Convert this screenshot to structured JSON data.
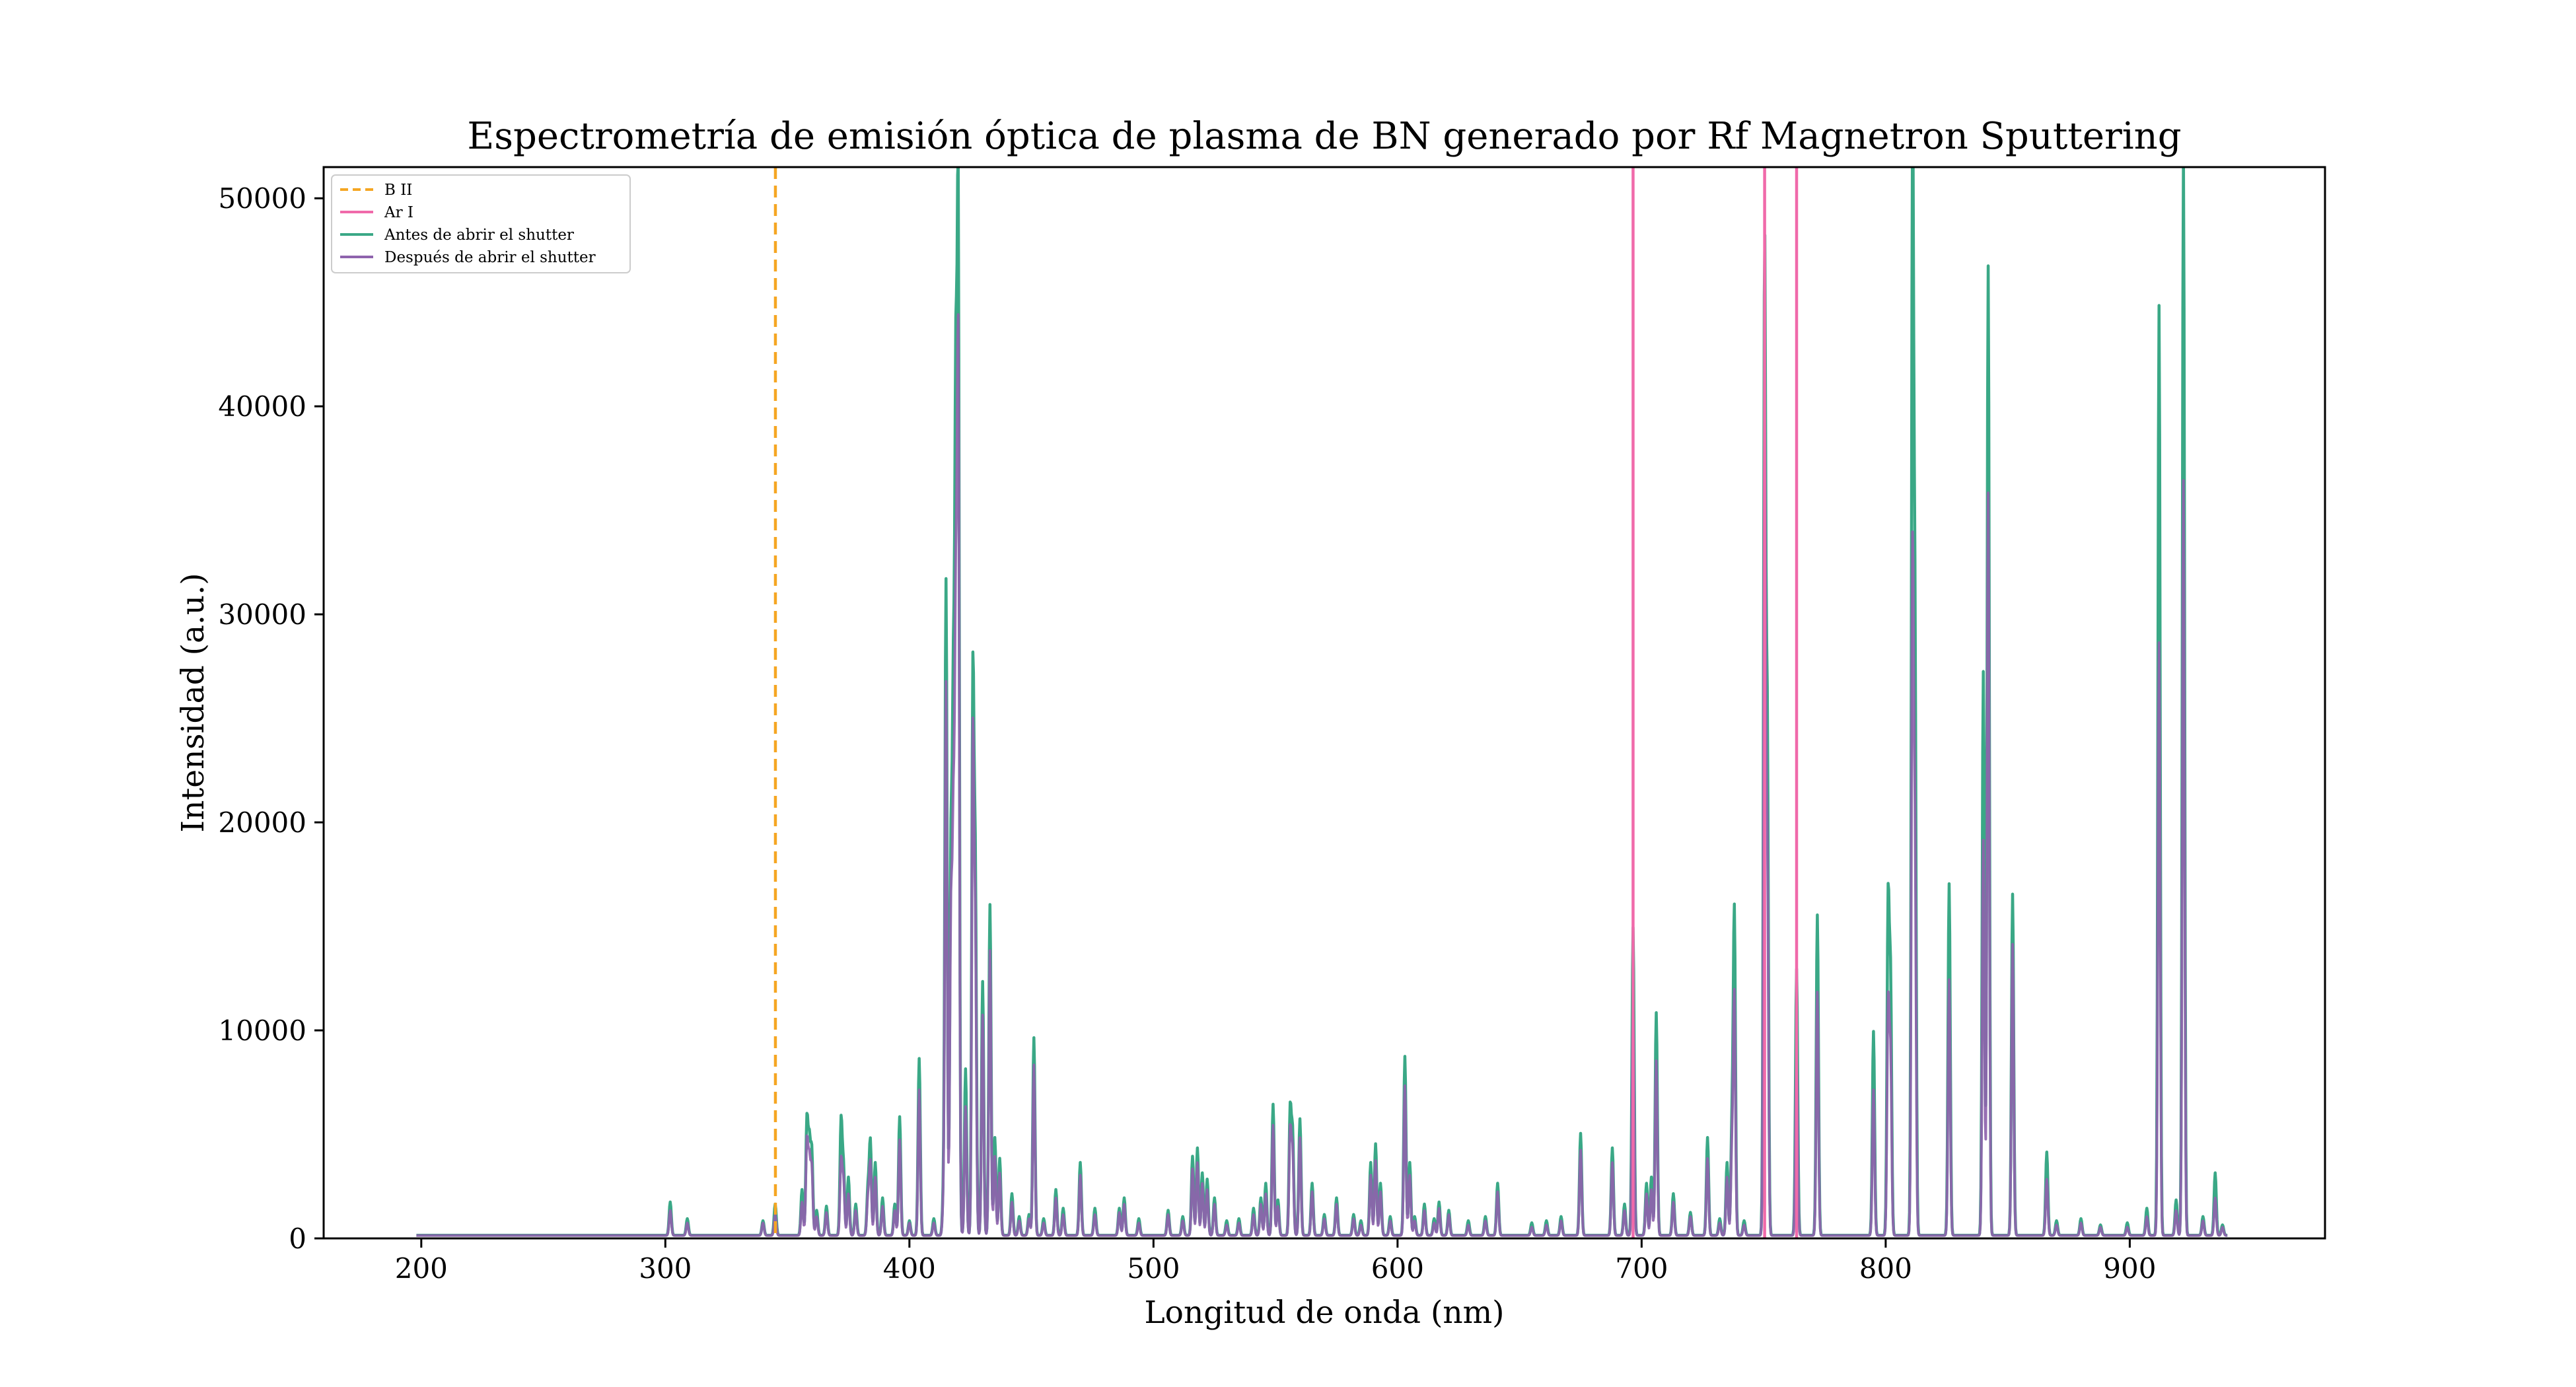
{
  "chart_data": {
    "type": "line",
    "title": "Espectrometría de emisión óptica de plasma de BN generado por Rf Magnetron Sputtering",
    "xlabel": "Longitud de onda (nm)",
    "ylabel": "Intensidad (a.u.)",
    "xlim": [
      160,
      980
    ],
    "ylim": [
      0,
      51500
    ],
    "xticks": [
      200,
      300,
      400,
      500,
      600,
      700,
      800,
      900
    ],
    "yticks": [
      0,
      10000,
      20000,
      30000,
      40000,
      50000
    ],
    "grid": false,
    "legend_position": "top-left",
    "legend": [
      "B II",
      "Ar I",
      "Antes de abrir el shutter",
      "Después de abrir el shutter"
    ],
    "reference_lines": [
      {
        "name": "B II",
        "color": "#f5a623",
        "style": "dashed",
        "x": [
          345.1
        ]
      },
      {
        "name": "Ar I",
        "color": "#f06aaa",
        "style": "solid",
        "x": [
          696.5,
          750.4,
          763.5
        ]
      }
    ],
    "series": [
      {
        "name": "Antes de abrir el shutter",
        "color": "#3aa886",
        "x_range": [
          198,
          940
        ],
        "baseline": 150,
        "peaks": [
          [
            302,
            1600
          ],
          [
            309,
            800
          ],
          [
            340,
            700
          ],
          [
            345,
            1500
          ],
          [
            356,
            2200
          ],
          [
            358,
            5500
          ],
          [
            359,
            4300
          ],
          [
            360,
            4000
          ],
          [
            362,
            1200
          ],
          [
            366,
            1400
          ],
          [
            372,
            5500
          ],
          [
            373,
            3200
          ],
          [
            375,
            2800
          ],
          [
            378,
            1500
          ],
          [
            383,
            2200
          ],
          [
            384,
            4500
          ],
          [
            386,
            3500
          ],
          [
            389,
            1800
          ],
          [
            394,
            1500
          ],
          [
            396,
            5700
          ],
          [
            400,
            700
          ],
          [
            404,
            8500
          ],
          [
            410,
            800
          ],
          [
            414,
            2000
          ],
          [
            415,
            31400
          ],
          [
            417,
            18000
          ],
          [
            418,
            24000
          ],
          [
            419,
            38000
          ],
          [
            420,
            48400
          ],
          [
            423,
            8000
          ],
          [
            426,
            26600
          ],
          [
            427,
            17000
          ],
          [
            430,
            12200
          ],
          [
            433,
            15900
          ],
          [
            435,
            4700
          ],
          [
            437,
            3700
          ],
          [
            442,
            2000
          ],
          [
            445,
            900
          ],
          [
            449,
            1000
          ],
          [
            451,
            9500
          ],
          [
            455,
            800
          ],
          [
            460,
            2200
          ],
          [
            463,
            1300
          ],
          [
            470,
            3500
          ],
          [
            476,
            1300
          ],
          [
            486,
            1300
          ],
          [
            488,
            1800
          ],
          [
            494,
            800
          ],
          [
            506,
            1200
          ],
          [
            512,
            900
          ],
          [
            516,
            3800
          ],
          [
            518,
            4200
          ],
          [
            520,
            3000
          ],
          [
            522,
            2700
          ],
          [
            525,
            1800
          ],
          [
            530,
            700
          ],
          [
            535,
            800
          ],
          [
            541,
            1300
          ],
          [
            544,
            1800
          ],
          [
            546,
            2500
          ],
          [
            549,
            6300
          ],
          [
            551,
            1700
          ],
          [
            556,
            6000
          ],
          [
            557,
            4800
          ],
          [
            560,
            5600
          ],
          [
            565,
            2500
          ],
          [
            570,
            1000
          ],
          [
            575,
            1800
          ],
          [
            582,
            1000
          ],
          [
            585,
            700
          ],
          [
            589,
            3500
          ],
          [
            591,
            4400
          ],
          [
            593,
            2500
          ],
          [
            597,
            900
          ],
          [
            603,
            8600
          ],
          [
            605,
            3500
          ],
          [
            607,
            900
          ],
          [
            611,
            1500
          ],
          [
            615,
            800
          ],
          [
            617,
            1600
          ],
          [
            621,
            1200
          ],
          [
            629,
            700
          ],
          [
            636,
            900
          ],
          [
            641,
            2500
          ],
          [
            655,
            600
          ],
          [
            661,
            700
          ],
          [
            667,
            900
          ],
          [
            675,
            4900
          ],
          [
            688,
            4200
          ],
          [
            693,
            1500
          ],
          [
            696.5,
            14800
          ],
          [
            702,
            2500
          ],
          [
            704,
            2800
          ],
          [
            706,
            10700
          ],
          [
            713,
            2000
          ],
          [
            720,
            1100
          ],
          [
            727,
            4700
          ],
          [
            732,
            800
          ],
          [
            735,
            3500
          ],
          [
            737,
            5000
          ],
          [
            738,
            15500
          ],
          [
            742,
            700
          ],
          [
            750.4,
            47200
          ],
          [
            751.5,
            24000
          ],
          [
            763.5,
            12800
          ],
          [
            772,
            15400
          ],
          [
            795,
            9800
          ],
          [
            801,
            15900
          ],
          [
            802,
            12000
          ],
          [
            811,
            52000
          ],
          [
            812,
            28000
          ],
          [
            826,
            16900
          ],
          [
            840,
            27100
          ],
          [
            842,
            46600
          ],
          [
            852,
            16400
          ],
          [
            866,
            4000
          ],
          [
            870,
            700
          ],
          [
            880,
            800
          ],
          [
            888,
            500
          ],
          [
            899,
            600
          ],
          [
            907,
            1300
          ],
          [
            912,
            44700
          ],
          [
            919,
            1700
          ],
          [
            922,
            52000
          ],
          [
            930,
            900
          ],
          [
            935,
            3000
          ],
          [
            938,
            500
          ]
        ]
      },
      {
        "name": "Después de abrir el shutter",
        "color": "#8e63ad",
        "x_range": [
          198,
          940
        ],
        "baseline": 140,
        "peaks": [
          [
            302,
            1200
          ],
          [
            309,
            600
          ],
          [
            340,
            600
          ],
          [
            345,
            1000
          ],
          [
            356,
            1600
          ],
          [
            358,
            4500
          ],
          [
            359,
            3500
          ],
          [
            360,
            3200
          ],
          [
            362,
            900
          ],
          [
            366,
            1100
          ],
          [
            372,
            3600
          ],
          [
            373,
            2600
          ],
          [
            375,
            2000
          ],
          [
            378,
            1200
          ],
          [
            383,
            1800
          ],
          [
            384,
            3500
          ],
          [
            386,
            2800
          ],
          [
            389,
            1400
          ],
          [
            394,
            1200
          ],
          [
            396,
            4600
          ],
          [
            400,
            600
          ],
          [
            404,
            7000
          ],
          [
            410,
            600
          ],
          [
            414,
            1600
          ],
          [
            415,
            26500
          ],
          [
            417,
            15000
          ],
          [
            418,
            18300
          ],
          [
            419,
            28000
          ],
          [
            420,
            41900
          ],
          [
            423,
            6200
          ],
          [
            426,
            23700
          ],
          [
            427,
            14000
          ],
          [
            430,
            10600
          ],
          [
            433,
            13700
          ],
          [
            435,
            3800
          ],
          [
            437,
            3000
          ],
          [
            442,
            1600
          ],
          [
            445,
            700
          ],
          [
            449,
            800
          ],
          [
            451,
            8200
          ],
          [
            455,
            600
          ],
          [
            460,
            1800
          ],
          [
            463,
            1000
          ],
          [
            470,
            2900
          ],
          [
            476,
            1000
          ],
          [
            486,
            1100
          ],
          [
            488,
            1500
          ],
          [
            494,
            600
          ],
          [
            506,
            1000
          ],
          [
            512,
            700
          ],
          [
            516,
            3200
          ],
          [
            518,
            3500
          ],
          [
            520,
            2500
          ],
          [
            522,
            2200
          ],
          [
            525,
            1500
          ],
          [
            530,
            500
          ],
          [
            535,
            600
          ],
          [
            541,
            1000
          ],
          [
            544,
            1500
          ],
          [
            546,
            2000
          ],
          [
            549,
            5300
          ],
          [
            551,
            1400
          ],
          [
            556,
            5000
          ],
          [
            557,
            4000
          ],
          [
            560,
            4700
          ],
          [
            565,
            2100
          ],
          [
            570,
            800
          ],
          [
            575,
            1500
          ],
          [
            582,
            800
          ],
          [
            585,
            500
          ],
          [
            589,
            2900
          ],
          [
            591,
            3600
          ],
          [
            593,
            2100
          ],
          [
            597,
            700
          ],
          [
            603,
            7200
          ],
          [
            605,
            2900
          ],
          [
            607,
            700
          ],
          [
            611,
            1200
          ],
          [
            615,
            600
          ],
          [
            617,
            1300
          ],
          [
            621,
            1000
          ],
          [
            629,
            500
          ],
          [
            636,
            700
          ],
          [
            641,
            2100
          ],
          [
            655,
            400
          ],
          [
            661,
            500
          ],
          [
            667,
            700
          ],
          [
            675,
            4100
          ],
          [
            688,
            3500
          ],
          [
            693,
            1200
          ],
          [
            696.5,
            10900
          ],
          [
            702,
            2000
          ],
          [
            704,
            2200
          ],
          [
            706,
            8400
          ],
          [
            713,
            1600
          ],
          [
            720,
            900
          ],
          [
            727,
            3700
          ],
          [
            732,
            600
          ],
          [
            735,
            2800
          ],
          [
            737,
            4000
          ],
          [
            738,
            11500
          ],
          [
            742,
            500
          ],
          [
            750.4,
            38300
          ],
          [
            751.5,
            18000
          ],
          [
            763.5,
            8500
          ],
          [
            772,
            11700
          ],
          [
            795,
            7000
          ],
          [
            801,
            11000
          ],
          [
            802,
            8500
          ],
          [
            811,
            32300
          ],
          [
            812,
            18000
          ],
          [
            826,
            12300
          ],
          [
            840,
            19000
          ],
          [
            842,
            35700
          ],
          [
            852,
            14000
          ],
          [
            866,
            2700
          ],
          [
            870,
            500
          ],
          [
            880,
            600
          ],
          [
            888,
            400
          ],
          [
            899,
            400
          ],
          [
            907,
            900
          ],
          [
            912,
            28500
          ],
          [
            919,
            1200
          ],
          [
            922,
            36300
          ],
          [
            930,
            700
          ],
          [
            935,
            1800
          ],
          [
            938,
            400
          ]
        ]
      }
    ]
  }
}
